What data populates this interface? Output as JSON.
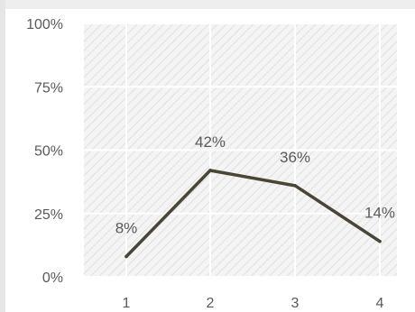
{
  "chart_data": {
    "type": "line",
    "categories": [
      "1",
      "2",
      "3",
      "4"
    ],
    "values": [
      8,
      42,
      36,
      14
    ],
    "data_labels": [
      "8%",
      "42%",
      "36%",
      "14%"
    ],
    "ylim": [
      0,
      100
    ],
    "y_ticks": [
      "0%",
      "25%",
      "50%",
      "75%",
      "100%"
    ],
    "y_tick_values": [
      0,
      25,
      50,
      75,
      100
    ],
    "grid": true,
    "legend": "none",
    "title": "",
    "xlabel": "",
    "ylabel": "",
    "colors": {
      "line": "#4a4535",
      "plot_background": "#f4f4f4",
      "hatch": "#e0e0e0",
      "gridline": "#ffffff",
      "tick_text": "#595959"
    }
  }
}
